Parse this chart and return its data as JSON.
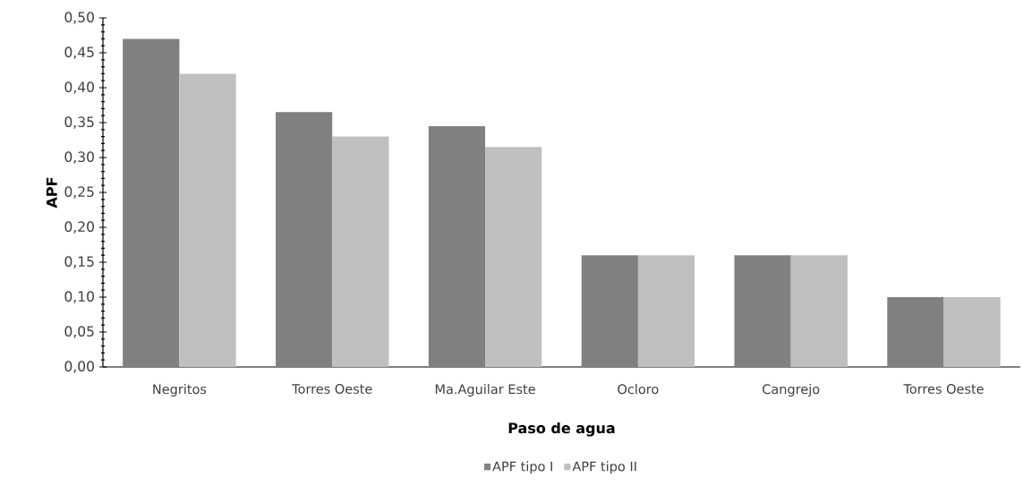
{
  "chart_data": {
    "type": "bar",
    "xlabel": "Paso de agua",
    "ylabel": "APF",
    "categories": [
      "Negritos",
      "Torres Oeste",
      "Ma.Aguilar Este",
      "Ocloro",
      "Cangrejo",
      "Torres Oeste"
    ],
    "series": [
      {
        "name": "APF tipo I",
        "color": "#808080",
        "values": [
          0.47,
          0.365,
          0.345,
          0.16,
          0.16,
          0.1
        ]
      },
      {
        "name": "APF tipo II",
        "color": "#bfbfbf",
        "values": [
          0.42,
          0.33,
          0.315,
          0.16,
          0.16,
          0.1
        ]
      }
    ],
    "ylim": [
      0,
      0.5
    ],
    "yticks": [
      {
        "value": 0,
        "label": "0,00"
      },
      {
        "value": 0.05,
        "label": "0,05"
      },
      {
        "value": 0.1,
        "label": "0,10"
      },
      {
        "value": 0.15,
        "label": "0,15"
      },
      {
        "value": 0.2,
        "label": "0,20"
      },
      {
        "value": 0.25,
        "label": "0,25"
      },
      {
        "value": 0.3,
        "label": "0,30"
      },
      {
        "value": 0.35,
        "label": "0,35"
      },
      {
        "value": 0.4,
        "label": "0,40"
      },
      {
        "value": 0.45,
        "label": "0,45"
      },
      {
        "value": 0.5,
        "label": "0,50"
      }
    ],
    "legend": "bottom"
  }
}
